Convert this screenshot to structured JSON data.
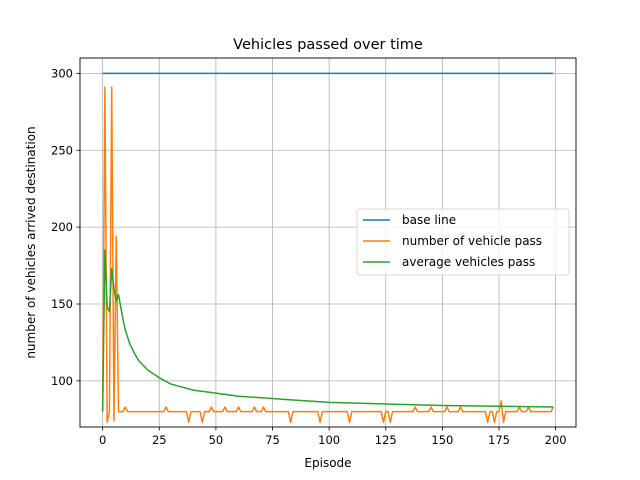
{
  "chart_data": {
    "type": "line",
    "title": "Vehicles passed over time",
    "xlabel": "Episode",
    "ylabel": "number of vehicles arrived destination",
    "xlim": [
      -10,
      209
    ],
    "ylim": [
      70,
      310
    ],
    "xticks": [
      0,
      25,
      50,
      75,
      100,
      125,
      150,
      175,
      200
    ],
    "yticks": [
      100,
      150,
      200,
      250,
      300
    ],
    "grid": true,
    "legend_position": "center-right",
    "series": [
      {
        "name": "base line",
        "color": "#1f77b4",
        "x": [
          0,
          199
        ],
        "y": [
          300,
          300
        ]
      },
      {
        "name": "number of vehicle pass",
        "color": "#ff7f0e",
        "x": [
          0,
          1,
          2,
          3,
          4,
          5,
          6,
          7,
          8,
          9,
          10,
          11,
          12,
          13,
          27,
          28,
          29,
          37,
          38,
          39,
          43,
          44,
          45,
          47,
          48,
          49,
          53,
          54,
          55,
          59,
          60,
          61,
          66,
          67,
          68,
          70,
          71,
          72,
          82,
          83,
          84,
          95,
          96,
          97,
          108,
          109,
          110,
          123,
          124,
          125,
          126,
          127,
          128,
          129,
          137,
          138,
          139,
          144,
          145,
          146,
          151,
          152,
          153,
          157,
          158,
          159,
          169,
          170,
          171,
          172,
          173,
          174,
          175,
          176,
          177,
          178,
          179,
          183,
          184,
          185,
          187,
          188,
          189,
          197,
          198,
          199
        ],
        "y": [
          80,
          291,
          73,
          80,
          291,
          74,
          194,
          80,
          80,
          80,
          83,
          80,
          80,
          80,
          80,
          83,
          80,
          80,
          73,
          80,
          80,
          73,
          80,
          80,
          83,
          80,
          80,
          83,
          80,
          80,
          83,
          80,
          80,
          83,
          80,
          80,
          83,
          80,
          80,
          73,
          80,
          80,
          73,
          80,
          80,
          73,
          80,
          80,
          73,
          80,
          80,
          73,
          80,
          80,
          80,
          83,
          80,
          80,
          83,
          80,
          80,
          83,
          80,
          80,
          83,
          80,
          80,
          73,
          80,
          80,
          73,
          80,
          80,
          87,
          73,
          80,
          80,
          80,
          83,
          80,
          80,
          83,
          80,
          80,
          80,
          83
        ]
      },
      {
        "name": "average vehicles pass",
        "color": "#2ca02c",
        "x": [
          0,
          1,
          2,
          3,
          4,
          5,
          6,
          7,
          8,
          9,
          10,
          12,
          14,
          16,
          18,
          20,
          25,
          30,
          40,
          50,
          60,
          80,
          100,
          125,
          150,
          175,
          199
        ],
        "y": [
          80,
          185,
          148,
          145,
          173,
          160,
          152,
          156,
          148,
          140,
          133,
          124,
          118,
          113,
          110,
          107,
          102,
          98,
          94,
          92,
          90,
          88,
          86,
          85,
          84,
          83.5,
          83
        ]
      }
    ]
  }
}
